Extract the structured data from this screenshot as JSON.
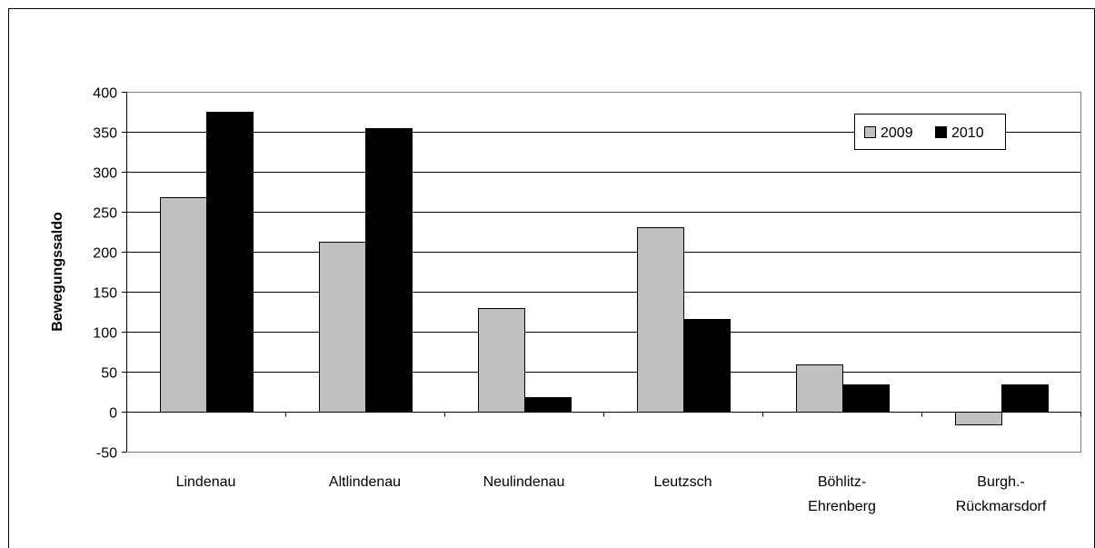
{
  "chart_data": {
    "type": "bar",
    "categories": [
      [
        "Lindenau"
      ],
      [
        "Altlindenau"
      ],
      [
        "Neulindenau"
      ],
      [
        "Leutzsch"
      ],
      [
        "Böhlitz-",
        "Ehrenberg"
      ],
      [
        "Burgh.-",
        "Rückmarsdorf"
      ]
    ],
    "series": [
      {
        "name": "2009",
        "color": "#c0c0c0",
        "values": [
          268,
          213,
          129,
          231,
          59,
          -16
        ]
      },
      {
        "name": "2010",
        "color": "#000000",
        "values": [
          375,
          355,
          18,
          116,
          34,
          34
        ]
      }
    ],
    "xlabel": "",
    "ylabel": "Bewegungssaldo",
    "ylim": [
      -50,
      400
    ],
    "yticks": [
      -50,
      0,
      50,
      100,
      150,
      200,
      250,
      300,
      350,
      400
    ],
    "grid": true,
    "legend_position": "top-right"
  }
}
